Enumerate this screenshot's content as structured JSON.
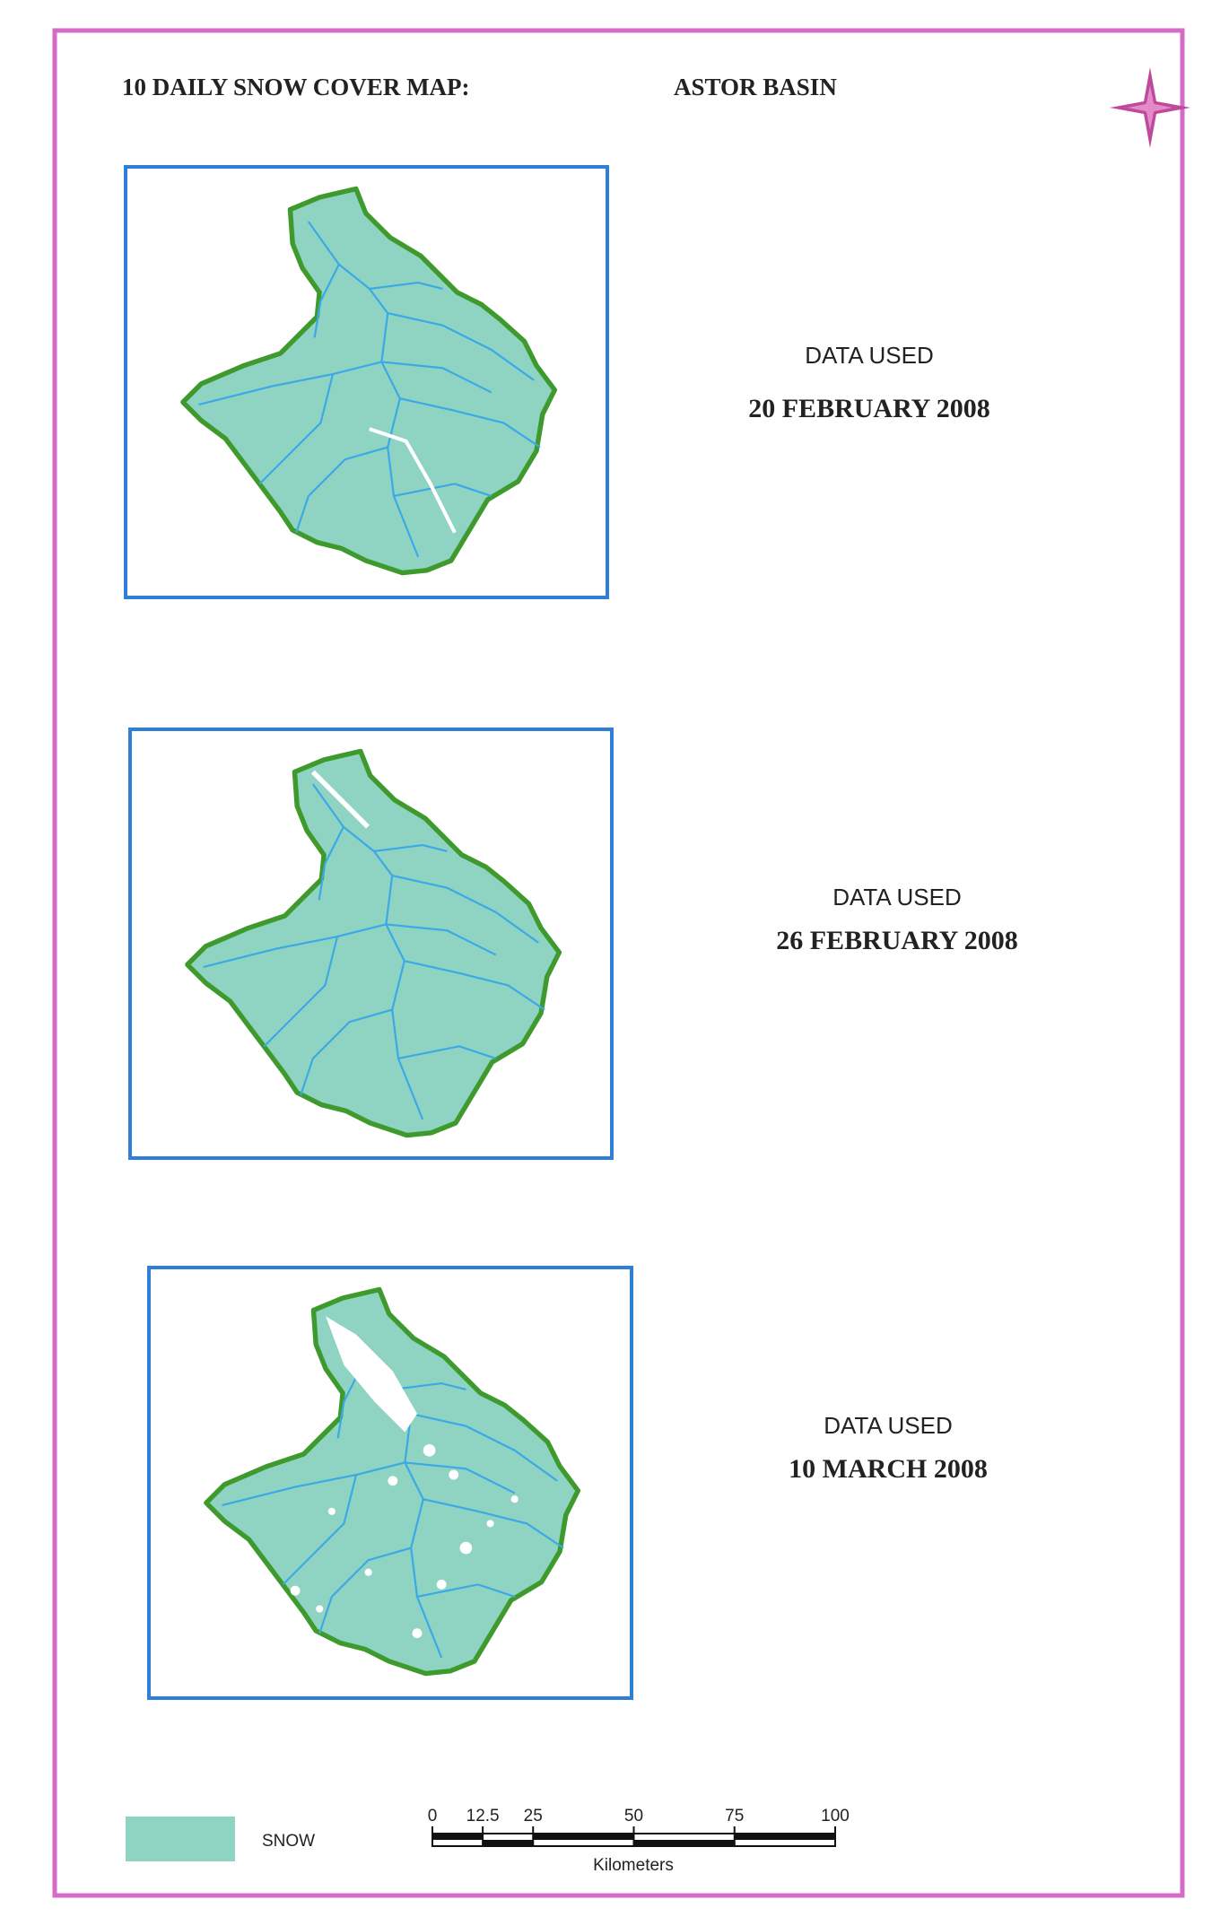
{
  "header": {
    "title": "10 DAILY SNOW COVER MAP:",
    "basin": "ASTOR BASIN"
  },
  "panels": [
    {
      "label": "DATA USED",
      "date": "20 FEBRUARY 2008"
    },
    {
      "label": "DATA USED",
      "date": "26 FEBRUARY 2008"
    },
    {
      "label": "DATA USED",
      "date": "10 MARCH 2008"
    }
  ],
  "legend": {
    "label": "SNOW"
  },
  "scale_bar": {
    "ticks": [
      0,
      12.5,
      25,
      50,
      75,
      100
    ],
    "unit": "Kilometers"
  }
}
